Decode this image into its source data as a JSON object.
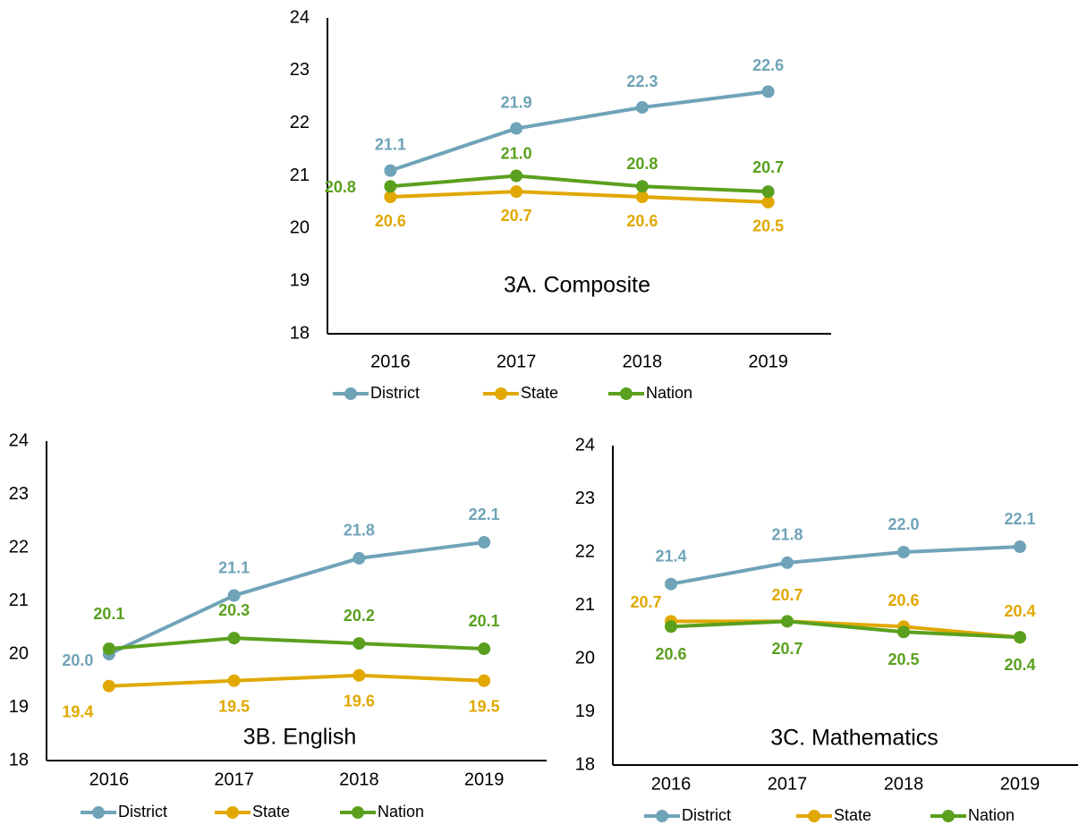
{
  "chart_data": [
    {
      "type": "line",
      "title": "3A. Composite",
      "categories": [
        "2016",
        "2017",
        "2018",
        "2019"
      ],
      "ylim": [
        18,
        24
      ],
      "yticks": [
        18,
        19,
        20,
        21,
        22,
        23,
        24
      ],
      "grid": false,
      "legend": "bottom",
      "series": [
        {
          "name": "District",
          "color": "#6fa3b8",
          "values": [
            21.1,
            21.9,
            22.3,
            22.6
          ],
          "value_labels": [
            "21.1",
            "21.9",
            "22.3",
            "22.6"
          ]
        },
        {
          "name": "State",
          "color": "#e0a800",
          "values": [
            20.6,
            20.7,
            20.6,
            20.5
          ],
          "value_labels": [
            "20.6",
            "20.7",
            "20.6",
            "20.5"
          ]
        },
        {
          "name": "Nation",
          "color": "#5aa01e",
          "values": [
            20.8,
            21.0,
            20.8,
            20.7
          ],
          "value_labels": [
            "20.8",
            "21.0",
            "20.8",
            "20.7"
          ]
        }
      ]
    },
    {
      "type": "line",
      "title": "3B. English",
      "categories": [
        "2016",
        "2017",
        "2018",
        "2019"
      ],
      "ylim": [
        18,
        24
      ],
      "yticks": [
        18,
        19,
        20,
        21,
        22,
        23,
        24
      ],
      "grid": false,
      "legend": "bottom",
      "series": [
        {
          "name": "District",
          "color": "#6fa3b8",
          "values": [
            20.0,
            21.1,
            21.8,
            22.1
          ],
          "value_labels": [
            "20.0",
            "21.1",
            "21.8",
            "22.1"
          ]
        },
        {
          "name": "State",
          "color": "#e0a800",
          "values": [
            19.4,
            19.5,
            19.6,
            19.5
          ],
          "value_labels": [
            "19.4",
            "19.5",
            "19.6",
            "19.5"
          ]
        },
        {
          "name": "Nation",
          "color": "#5aa01e",
          "values": [
            20.1,
            20.3,
            20.2,
            20.1
          ],
          "value_labels": [
            "20.1",
            "20.3",
            "20.2",
            "20.1"
          ]
        }
      ]
    },
    {
      "type": "line",
      "title": "3C. Mathematics",
      "categories": [
        "2016",
        "2017",
        "2018",
        "2019"
      ],
      "ylim": [
        18,
        24
      ],
      "yticks": [
        18,
        19,
        20,
        21,
        22,
        23,
        24
      ],
      "grid": false,
      "legend": "bottom",
      "series": [
        {
          "name": "District",
          "color": "#6fa3b8",
          "values": [
            21.4,
            21.8,
            22.0,
            22.1
          ],
          "value_labels": [
            "21.4",
            "21.8",
            "22.0",
            "22.1"
          ]
        },
        {
          "name": "State",
          "color": "#e0a800",
          "values": [
            20.7,
            20.7,
            20.6,
            20.4
          ],
          "value_labels": [
            "20.7",
            "20.7",
            "20.6",
            "20.4"
          ]
        },
        {
          "name": "Nation",
          "color": "#5aa01e",
          "values": [
            20.6,
            20.7,
            20.5,
            20.4
          ],
          "value_labels": [
            "20.6",
            "20.7",
            "20.5",
            "20.4"
          ]
        }
      ]
    }
  ]
}
